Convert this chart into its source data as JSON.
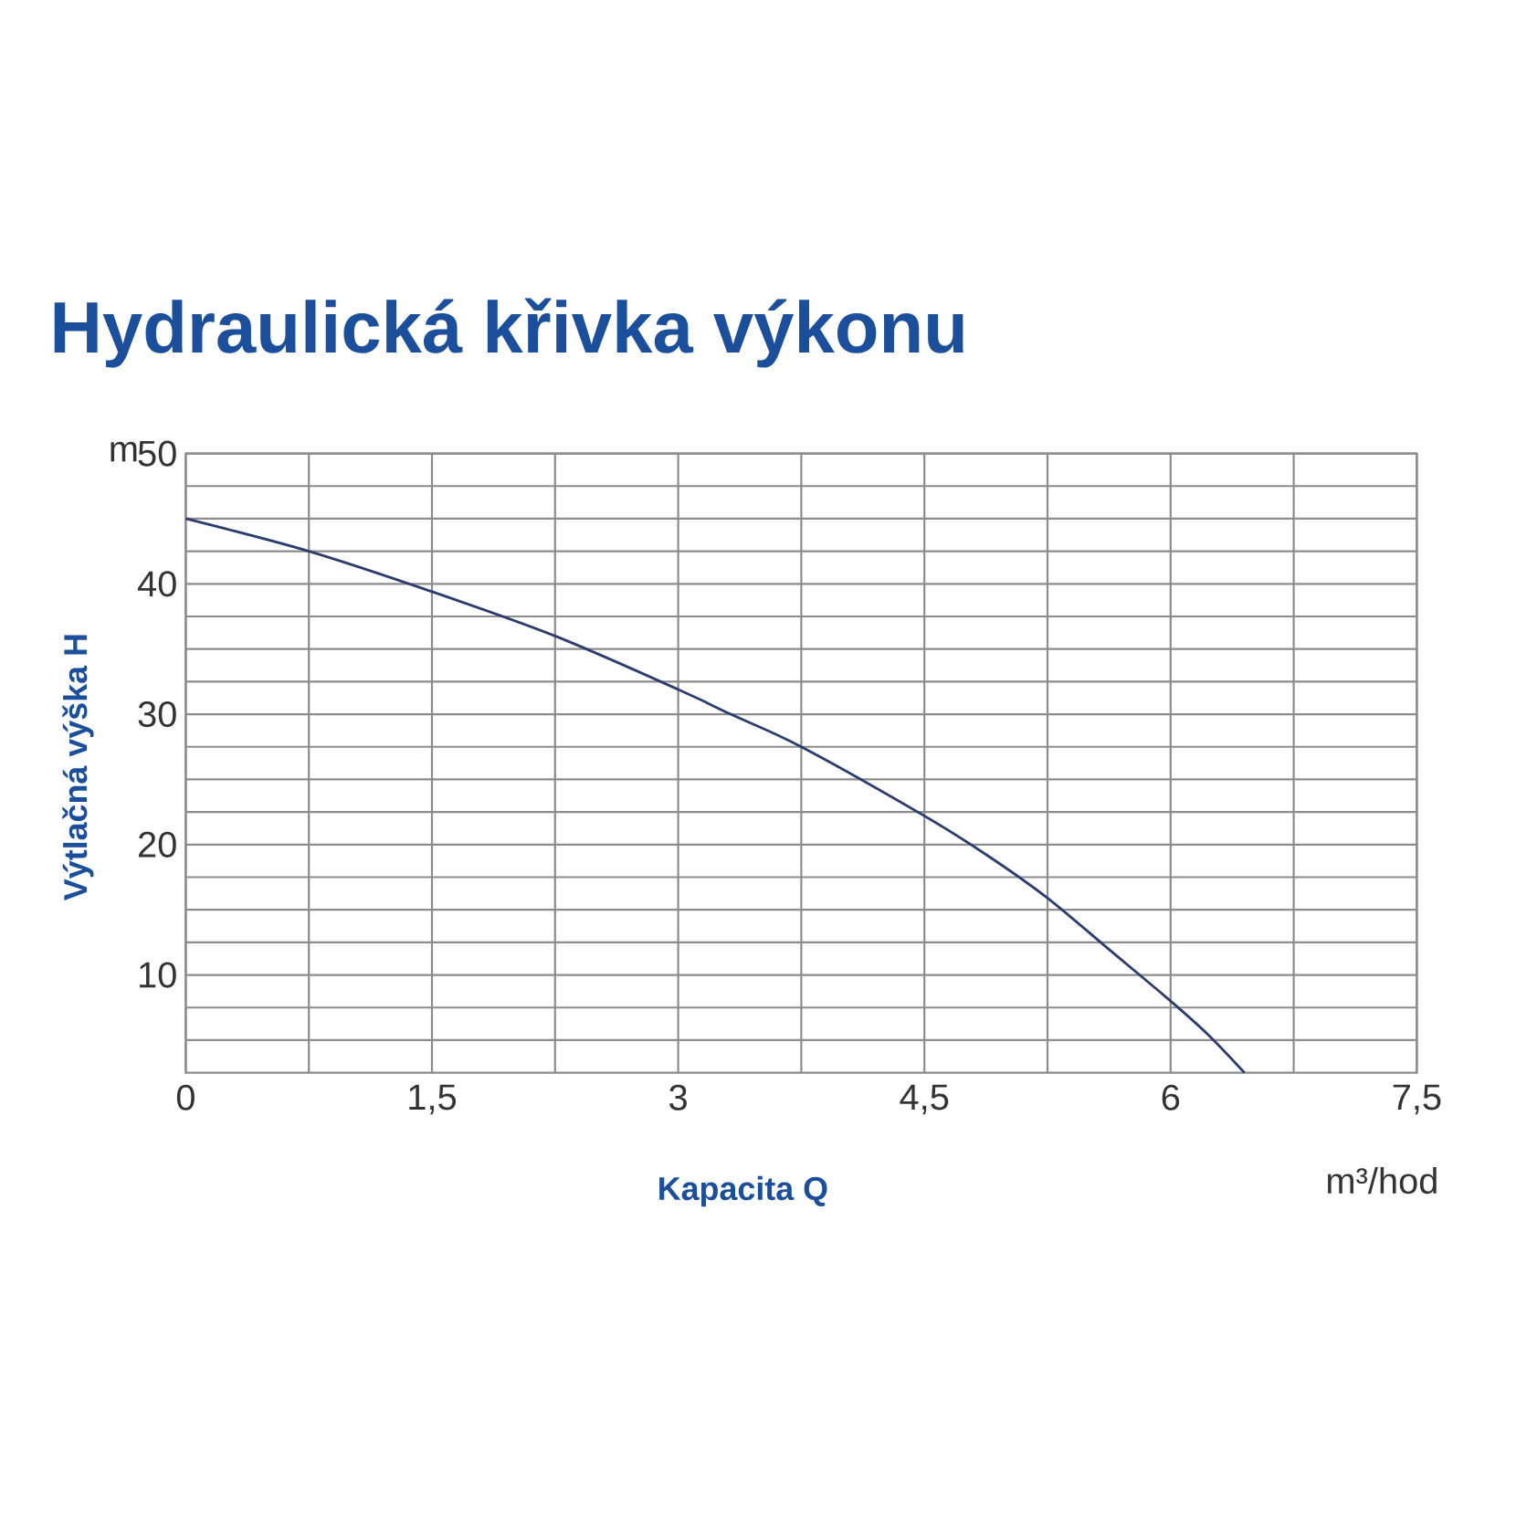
{
  "chart_data": {
    "type": "line",
    "title": "Hydraulická křivka výkonu",
    "xlabel": "Kapacita Q",
    "ylabel": "Výtlačná výška H",
    "annotations": [
      "m",
      "m³/hod"
    ],
    "x": [
      0,
      0.75,
      1.5,
      2.25,
      3,
      3.32,
      3.75,
      4.5,
      4.88,
      5.25,
      5.63,
      6,
      6.23,
      6.45
    ],
    "series": [
      {
        "color": "#2c3c6e",
        "values": [
          45,
          42.5,
          39.4,
          36,
          31.9,
          30,
          27.5,
          22.2,
          19.2,
          15.9,
          11.9,
          8,
          5.4,
          2.5
        ]
      }
    ],
    "xlim": [
      0,
      7.5
    ],
    "ylim": [
      2.5,
      50
    ],
    "xticks": [
      0,
      {
        "value": 0.75,
        "label": null
      },
      {
        "value": 1.5,
        "label": "1,5"
      },
      {
        "value": 2.25,
        "label": null
      },
      3,
      {
        "value": 3.75,
        "label": null
      },
      {
        "value": 4.5,
        "label": "4,5"
      },
      {
        "value": 5.25,
        "label": null
      },
      6,
      {
        "value": 6.75,
        "label": null
      },
      {
        "value": 7.5,
        "label": "7,5"
      }
    ],
    "yticks": [
      {
        "value": 5,
        "label": null
      },
      {
        "value": 7.5,
        "label": null
      },
      10,
      {
        "value": 12.5,
        "label": null
      },
      {
        "value": 15,
        "label": null
      },
      {
        "value": 17.5,
        "label": null
      },
      20,
      {
        "value": 22.5,
        "label": null
      },
      {
        "value": 25,
        "label": null
      },
      {
        "value": 27.5,
        "label": null
      },
      30,
      {
        "value": 32.5,
        "label": null
      },
      {
        "value": 35,
        "label": null
      },
      {
        "value": 37.5,
        "label": null
      },
      40,
      {
        "value": 42.5,
        "label": null
      },
      {
        "value": 45,
        "label": null
      },
      {
        "value": 47.5,
        "label": null
      },
      50
    ],
    "grid": true
  }
}
